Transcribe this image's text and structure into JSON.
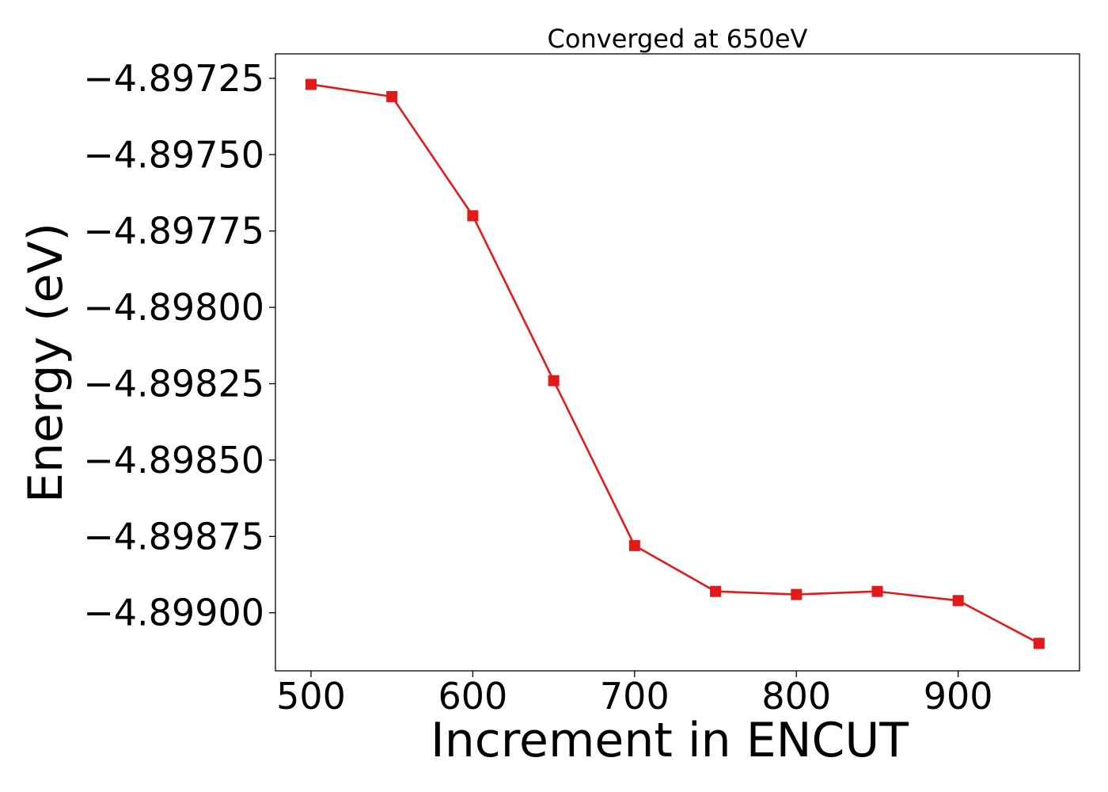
{
  "chart_data": {
    "type": "line",
    "title": "Converged at 650eV",
    "xlabel": "Increment in ENCUT",
    "ylabel": "Energy (eV)",
    "xlim": [
      478,
      975
    ],
    "ylim": [
      -4.89919,
      -4.89717
    ],
    "x_ticks": [
      500,
      600,
      700,
      800,
      900
    ],
    "x_tick_labels": [
      "500",
      "600",
      "700",
      "800",
      "900"
    ],
    "y_ticks": [
      -4.89725,
      -4.8975,
      -4.89775,
      -4.898,
      -4.89825,
      -4.8985,
      -4.89875,
      -4.899
    ],
    "y_tick_labels": [
      "−4.89725",
      "−4.89750",
      "−4.89775",
      "−4.89800",
      "−4.89825",
      "−4.89850",
      "−4.89875",
      "−4.89900"
    ],
    "grid": false,
    "series": [
      {
        "color": "#e31a1c",
        "marker": "square",
        "x": [
          500,
          550,
          600,
          650,
          700,
          750,
          800,
          850,
          900,
          950
        ],
        "y": [
          -4.89727,
          -4.89731,
          -4.8977,
          -4.89824,
          -4.89878,
          -4.89893,
          -4.89894,
          -4.89893,
          -4.89896,
          -4.8991
        ]
      }
    ]
  }
}
